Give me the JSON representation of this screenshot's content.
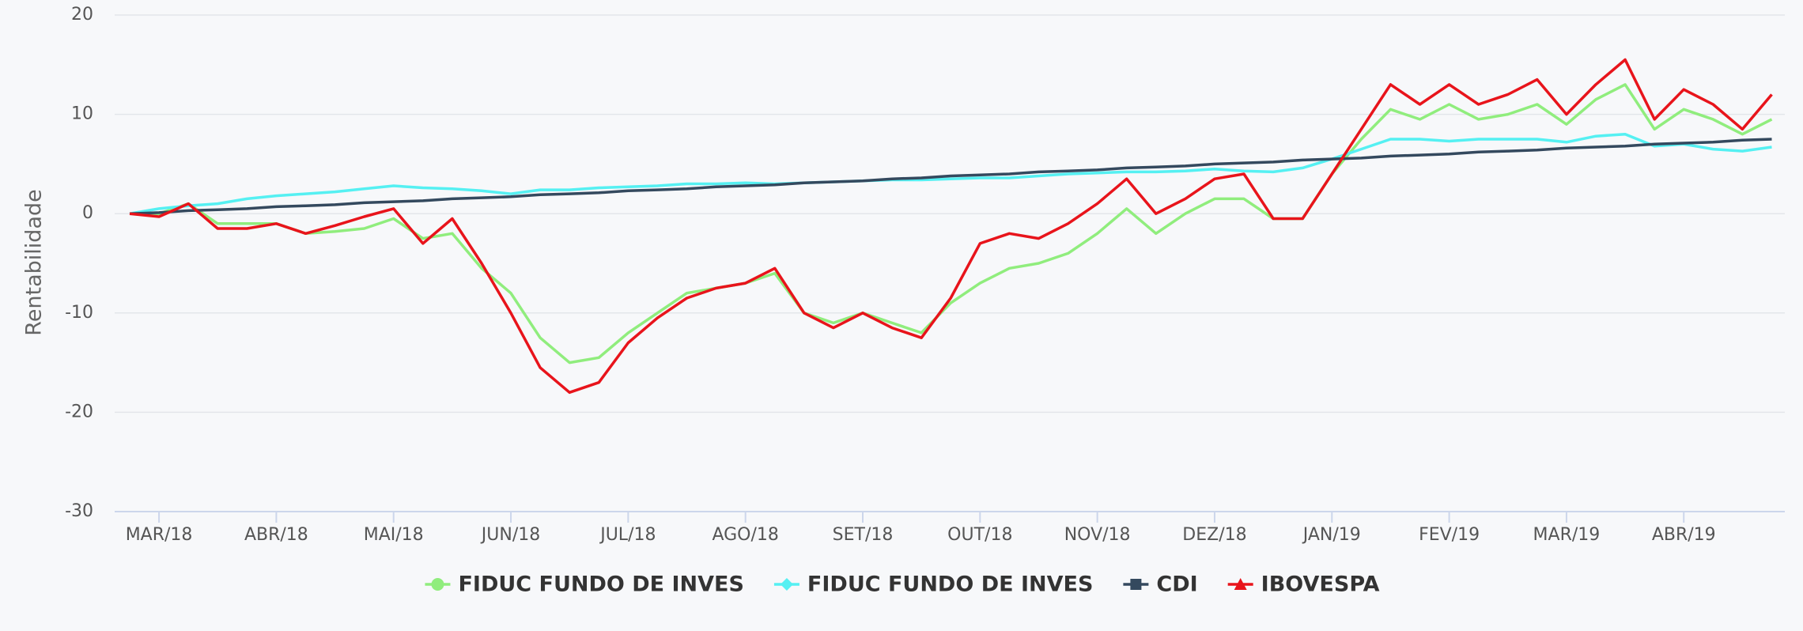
{
  "chart_data": {
    "type": "line",
    "y_label": "Rentabilidade",
    "categories": [
      null,
      "MAR/18",
      null,
      null,
      null,
      "ABR/18",
      null,
      null,
      null,
      "MAI/18",
      null,
      null,
      null,
      "JUN/18",
      null,
      null,
      null,
      "JUL/18",
      null,
      null,
      null,
      "AGO/18",
      null,
      null,
      null,
      "SET/18",
      null,
      null,
      null,
      "OUT/18",
      null,
      null,
      null,
      "NOV/18",
      null,
      null,
      null,
      "DEZ/18",
      null,
      null,
      null,
      "JAN/19",
      null,
      null,
      null,
      "FEV/19",
      null,
      null,
      null,
      "MAR/19",
      null,
      null,
      null,
      "ABR/19",
      null,
      null,
      null
    ],
    "series": [
      {
        "name": "FIDUC FUNDO DE INVES",
        "color": "#90ed7d",
        "marker": "circle",
        "values": [
          0,
          0,
          1,
          -1,
          -1,
          -1,
          -2,
          -1.8,
          -1.5,
          -0.5,
          -2.5,
          -2,
          -5.5,
          -8,
          -12.5,
          -15,
          -14.5,
          -12,
          -10,
          -8,
          -7.5,
          -7,
          -6,
          -10,
          -11,
          -10,
          -11,
          -12,
          -9,
          -7,
          -5.5,
          -5,
          -4,
          -2,
          0.5,
          -2,
          0,
          1.5,
          1.5,
          -0.5,
          -0.5,
          4,
          7.5,
          10.5,
          9.5,
          11,
          9.5,
          10,
          11,
          9,
          11.5,
          13,
          8.5,
          10.5,
          9.5,
          8,
          9.5
        ]
      },
      {
        "name": "FIDUC FUNDO DE INVES",
        "color": "#55f0f2",
        "marker": "diamond",
        "values": [
          0,
          0.5,
          0.8,
          1,
          1.5,
          1.8,
          2,
          2.2,
          2.5,
          2.8,
          2.6,
          2.5,
          2.3,
          2,
          2.4,
          2.4,
          2.6,
          2.7,
          2.8,
          3,
          3,
          3.1,
          3,
          3.1,
          3.2,
          3.3,
          3.4,
          3.4,
          3.5,
          3.6,
          3.6,
          3.8,
          4,
          4.1,
          4.2,
          4.2,
          4.3,
          4.5,
          4.3,
          4.2,
          4.6,
          5.5,
          6.5,
          7.5,
          7.5,
          7.3,
          7.5,
          7.5,
          7.5,
          7.2,
          7.8,
          8,
          6.8,
          7,
          6.5,
          6.3,
          6.7
        ]
      },
      {
        "name": "CDI",
        "color": "#34495e",
        "marker": "square",
        "values": [
          0,
          0.1,
          0.3,
          0.4,
          0.5,
          0.7,
          0.8,
          0.9,
          1.1,
          1.2,
          1.3,
          1.5,
          1.6,
          1.7,
          1.9,
          2.0,
          2.1,
          2.3,
          2.4,
          2.5,
          2.7,
          2.8,
          2.9,
          3.1,
          3.2,
          3.3,
          3.5,
          3.6,
          3.8,
          3.9,
          4.0,
          4.2,
          4.3,
          4.4,
          4.6,
          4.7,
          4.8,
          5.0,
          5.1,
          5.2,
          5.4,
          5.5,
          5.6,
          5.8,
          5.9,
          6.0,
          6.2,
          6.3,
          6.4,
          6.6,
          6.7,
          6.8,
          7.0,
          7.1,
          7.2,
          7.4,
          7.5
        ]
      },
      {
        "name": "IBOVESPA",
        "color": "#e8141b",
        "marker": "triangle",
        "values": [
          0,
          -0.3,
          1,
          -1.5,
          -1.5,
          -1,
          -2,
          -1.2,
          -0.3,
          0.5,
          -3,
          -0.5,
          -5,
          -10,
          -15.5,
          -18,
          -17,
          -13,
          -10.5,
          -8.5,
          -7.5,
          -7,
          -5.5,
          -10,
          -11.5,
          -10,
          -11.5,
          -12.5,
          -8.5,
          -3,
          -2,
          -2.5,
          -1,
          1,
          3.5,
          0,
          1.5,
          3.5,
          4,
          -0.5,
          -0.5,
          4,
          8.5,
          13,
          11,
          13,
          11,
          12,
          13.5,
          10,
          13,
          15.5,
          9.5,
          12.5,
          11,
          8.5,
          12
        ]
      }
    ],
    "ylim": [
      -30,
      20
    ],
    "yticks": [
      -30,
      -20,
      -10,
      0,
      10,
      20
    ],
    "grid": true
  }
}
